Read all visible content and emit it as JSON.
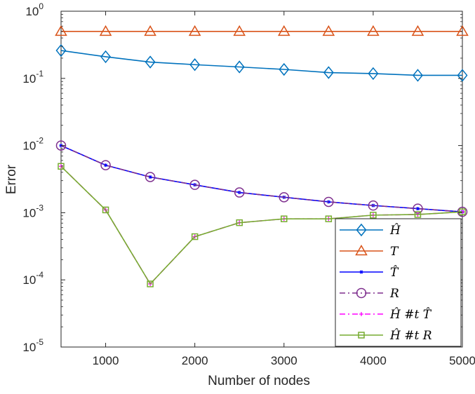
{
  "chart_data": {
    "type": "line",
    "title": "",
    "xlabel": "Number of nodes",
    "ylabel": "Error",
    "xlim": [
      500,
      5000
    ],
    "ylim": [
      1e-05,
      1
    ],
    "yscale": "log",
    "grid": false,
    "legend_position": "bottom-right",
    "x_ticks": [
      1000,
      2000,
      3000,
      4000,
      5000
    ],
    "x_tick_labels": [
      "1000",
      "2000",
      "3000",
      "4000",
      "5000"
    ],
    "y_ticks": [
      {
        "value": 1e-05,
        "base": "10",
        "exp": "-5"
      },
      {
        "value": 0.0001,
        "base": "10",
        "exp": "-4"
      },
      {
        "value": 0.001,
        "base": "10",
        "exp": "-3"
      },
      {
        "value": 0.01,
        "base": "10",
        "exp": "-2"
      },
      {
        "value": 0.1,
        "base": "10",
        "exp": "-1"
      },
      {
        "value": 1,
        "base": "10",
        "exp": "0"
      }
    ],
    "x": [
      500,
      1000,
      1500,
      2000,
      2500,
      3000,
      3500,
      4000,
      4500,
      5000
    ],
    "series": [
      {
        "name": "Ĥ",
        "color": "#0072BD",
        "marker": "diamond",
        "dash": "solid",
        "values": [
          0.26,
          0.21,
          0.175,
          0.16,
          0.148,
          0.136,
          0.122,
          0.118,
          0.111,
          0.111
        ]
      },
      {
        "name": "T",
        "color": "#D95319",
        "marker": "triangle",
        "dash": "solid",
        "values": [
          0.5,
          0.5,
          0.5,
          0.5,
          0.5,
          0.5,
          0.5,
          0.5,
          0.5,
          0.5
        ]
      },
      {
        "name": "T̂",
        "color": "#0000FF",
        "marker": "star",
        "dash": "solid",
        "values": [
          0.01,
          0.0051,
          0.0034,
          0.0026,
          0.002,
          0.0017,
          0.00145,
          0.00128,
          0.00115,
          0.00103
        ]
      },
      {
        "name": "R",
        "color": "#7E2F8E",
        "marker": "circle",
        "dash": "dashdot",
        "values": [
          0.01,
          0.0051,
          0.0034,
          0.0026,
          0.002,
          0.0017,
          0.00145,
          0.00128,
          0.00115,
          0.00103
        ]
      },
      {
        "name": "Ĥ #t T̂",
        "color": "#FF00FF",
        "marker": "plus",
        "dash": "dashdot",
        "values": [
          0.0049,
          0.0011,
          8.7e-05,
          0.00044,
          0.00071,
          0.00081,
          0.00081,
          0.00092,
          0.00094,
          0.00103
        ]
      },
      {
        "name": "Ĥ #t R",
        "color": "#77AC30",
        "marker": "square",
        "dash": "solid",
        "values": [
          0.0049,
          0.0011,
          8.7e-05,
          0.00044,
          0.00071,
          0.00081,
          0.00081,
          0.00092,
          0.00094,
          0.00103
        ]
      }
    ]
  }
}
